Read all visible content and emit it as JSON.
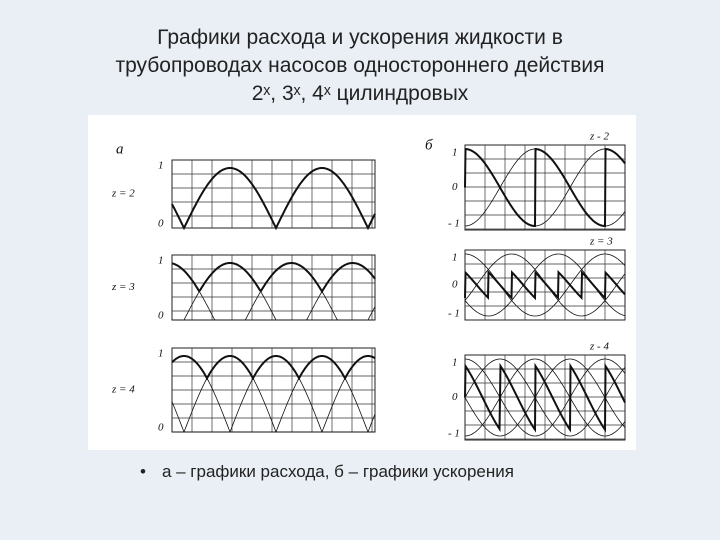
{
  "slide": {
    "title": [
      "Графики расхода и ускорения жидкости в",
      "трубопроводах насосов одностороннего действия",
      "2ˣ, 3ˣ, 4ˣ цилиндровых"
    ],
    "figure": {
      "left": {
        "label": "а",
        "panels": [
          {
            "label": "z = 2",
            "ticks": [
              "1",
              "0"
            ]
          },
          {
            "label": "z = 3",
            "ticks": [
              "1",
              "0"
            ]
          },
          {
            "label": "z = 4",
            "ticks": [
              "1",
              "0"
            ]
          }
        ]
      },
      "right": {
        "label": "б",
        "panels": [
          {
            "label": "z - 2",
            "ticks": [
              "1",
              "0",
              "- 1"
            ]
          },
          {
            "label": "z = 3",
            "ticks": [
              "1",
              "0",
              "- 1"
            ]
          },
          {
            "label": "z - 4",
            "ticks": [
              "1",
              "0",
              "- 1"
            ]
          }
        ]
      }
    },
    "bullet": "а – графики расхода, б – графики ускорения"
  }
}
